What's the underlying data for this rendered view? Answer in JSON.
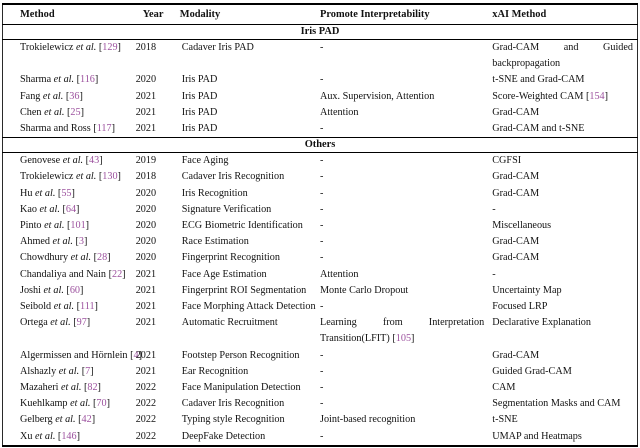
{
  "colors": {
    "citation_link": "#9c519e",
    "text": "#121212",
    "rule": "#000000",
    "background": "#ffffff"
  },
  "table": {
    "columns": [
      "Method",
      "Year",
      "Modality",
      "Promote Interpretability",
      "xAI Method"
    ],
    "sections": [
      {
        "title": "Iris PAD",
        "rows": [
          {
            "author": "Trokielewicz",
            "etal": true,
            "cite": "129",
            "year": "2018",
            "modality": "Cadaver Iris PAD",
            "promote": "-",
            "xai": "Grad-CAM and Guided backpropagation"
          },
          {
            "author": "Sharma",
            "etal": true,
            "cite": "116",
            "year": "2020",
            "modality": "Iris PAD",
            "promote": "-",
            "xai": "t-SNE and Grad-CAM"
          },
          {
            "author": "Fang",
            "etal": true,
            "cite": "36",
            "year": "2021",
            "modality": "Iris PAD",
            "promote": "Aux. Supervision, Attention",
            "xai": "Score-Weighted CAM",
            "xai_cite": "154"
          },
          {
            "author": "Chen",
            "etal": true,
            "cite": "25",
            "year": "2021",
            "modality": "Iris PAD",
            "promote": "Attention",
            "xai": "Grad-CAM"
          },
          {
            "author": "Sharma and Ross",
            "etal": false,
            "cite": "117",
            "year": "2021",
            "modality": "Iris PAD",
            "promote": "-",
            "xai": "Grad-CAM and t-SNE"
          }
        ]
      },
      {
        "title": "Others",
        "rows": [
          {
            "author": "Genovese",
            "etal": true,
            "cite": "43",
            "year": "2019",
            "modality": "Face Aging",
            "promote": "-",
            "xai": "CGFSI"
          },
          {
            "author": "Trokielewicz",
            "etal": true,
            "cite": "130",
            "year": "2018",
            "modality": "Cadaver Iris Recognition",
            "promote": "-",
            "xai": "Grad-CAM"
          },
          {
            "author": "Hu",
            "etal": true,
            "cite": "55",
            "year": "2020",
            "modality": "Iris Recognition",
            "promote": "-",
            "xai": "Grad-CAM"
          },
          {
            "author": "Kao",
            "etal": true,
            "cite": "64",
            "year": "2020",
            "modality": "Signature Verification",
            "promote": "-",
            "xai": "-"
          },
          {
            "author": "Pinto",
            "etal": true,
            "cite": "101",
            "year": "2020",
            "modality": "ECG Biometric Identification",
            "promote": "-",
            "xai": "Miscellaneous"
          },
          {
            "author": "Ahmed",
            "etal": true,
            "cite": "3",
            "year": "2020",
            "modality": "Race Estimation",
            "promote": "-",
            "xai": "Grad-CAM"
          },
          {
            "author": "Chowdhury",
            "etal": true,
            "cite": "28",
            "year": "2020",
            "modality": "Fingerprint Recognition",
            "promote": "-",
            "xai": "Grad-CAM"
          },
          {
            "author": "Chandaliya and Nain",
            "etal": false,
            "cite": "22",
            "year": "2021",
            "modality": "Face Age Estimation",
            "promote": "Attention",
            "xai": "-"
          },
          {
            "author": "Joshi",
            "etal": true,
            "cite": "60",
            "year": "2021",
            "modality": "Fingerprint ROI Segmentation",
            "promote": "Monte Carlo Dropout",
            "xai": "Uncertainty Map"
          },
          {
            "author": "Seibold",
            "etal": true,
            "cite": "111",
            "year": "2021",
            "modality": "Face Morphing Attack Detection",
            "promote": "-",
            "xai": "Focused LRP"
          },
          {
            "author": "Ortega",
            "etal": true,
            "cite": "97",
            "year": "2021",
            "modality": "Automatic Recruitment",
            "promote": "Learning from Interpretation Transition(LFIT)",
            "promote_cite": "105",
            "xai": "Declarative Explanation"
          },
          {
            "author": "Algermissen and Hörnlein",
            "etal": false,
            "cite": "4",
            "year": "2021",
            "modality": "Footstep Person Recognition",
            "promote": "-",
            "xai": "Grad-CAM"
          },
          {
            "author": "Alshazly",
            "etal": true,
            "cite": "7",
            "year": "2021",
            "modality": "Ear Recognition",
            "promote": "-",
            "xai": "Guided Grad-CAM"
          },
          {
            "author": "Mazaheri",
            "etal": true,
            "cite": "82",
            "year": "2022",
            "modality": "Face Manipulation Detection",
            "promote": "-",
            "xai": "CAM"
          },
          {
            "author": "Kuehlkamp",
            "etal": true,
            "cite": "70",
            "year": "2022",
            "modality": "Cadaver Iris Recognition",
            "promote": "-",
            "xai": "Segmentation Masks and CAM"
          },
          {
            "author": "Gelberg",
            "etal": true,
            "cite": "42",
            "year": "2022",
            "modality": "Typing style Recognition",
            "promote": "Joint-based recognition",
            "xai": "t-SNE"
          },
          {
            "author": "Xu",
            "etal": true,
            "cite": "146",
            "year": "2022",
            "modality": "DeepFake Detection",
            "promote": "-",
            "xai": "UMAP and Heatmaps"
          }
        ]
      }
    ]
  }
}
